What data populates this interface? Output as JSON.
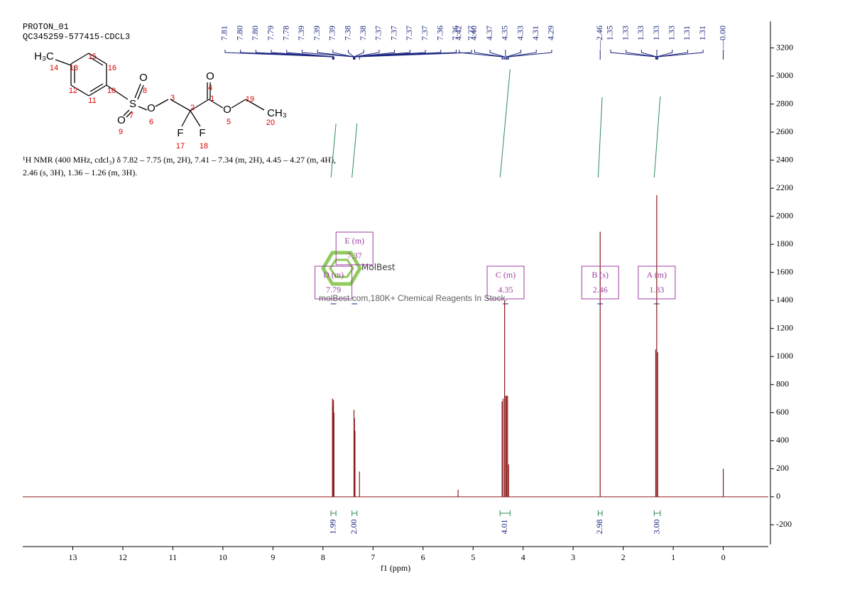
{
  "header": {
    "lines": [
      "PROTON_01",
      "QC345259-577415-CDCL3"
    ]
  },
  "molecule": {
    "labels": [
      "H₃C",
      "14",
      "13",
      "15",
      "16",
      "12",
      "11",
      "10",
      "S",
      "7",
      "O",
      "8",
      "O",
      "9",
      "O",
      "6",
      "3",
      "2",
      "F",
      "17",
      "F",
      "18",
      "O",
      "4",
      "1",
      "O",
      "5",
      "19",
      "CH₃",
      "20"
    ]
  },
  "description": [
    "¹H NMR (400 MHz, cdcl₃) δ 7.82 – 7.75 (m, 2H), 7.41 – 7.34 (m, 2H), 4.45 – 4.27 (m, 4H),",
    "2.46 (s, 3H), 1.36 – 1.26 (m, 3H)."
  ],
  "watermark": {
    "brand": "MolBest",
    "tagline": "molBest.com,180K+ Chemical Reagents In Stock."
  },
  "chart_data": {
    "type": "spectrum",
    "x_label": "f1 (ppm)",
    "xlim": [
      14,
      -0.9
    ],
    "xticks": [
      13,
      12,
      11,
      10,
      9,
      8,
      7,
      6,
      5,
      4,
      3,
      2,
      1,
      0
    ],
    "ylim": [
      -340,
      3390
    ],
    "yticks": [
      -200,
      0,
      200,
      400,
      600,
      800,
      1000,
      1200,
      1400,
      1600,
      1800,
      2000,
      2200,
      2400,
      2600,
      2800,
      3000,
      3200
    ],
    "color": "#8b1a1a",
    "label_color": "#1a237e",
    "integral_color": "#2e8b57",
    "box_color": "#9c3fa0",
    "peaks": {
      "x": [
        7.81,
        7.8,
        7.79,
        7.78,
        7.38,
        7.37,
        7.36,
        7.27,
        5.3,
        4.42,
        4.4,
        4.37,
        4.35,
        4.33,
        4.31,
        4.29,
        2.46,
        1.35,
        1.33,
        1.31,
        0
      ],
      "y": [
        700,
        650,
        690,
        600,
        620,
        560,
        470,
        180,
        50,
        680,
        700,
        1400,
        720,
        720,
        720,
        230,
        1890,
        1050,
        2150,
        1030,
        200
      ]
    },
    "peak_labels": [
      7.81,
      {
        "value": 7.8,
        "label": "7.80"
      },
      {
        "value": 7.8,
        "label": "7.80"
      },
      7.79,
      7.78,
      7.39,
      7.39,
      7.39,
      7.38,
      7.38,
      7.37,
      7.37,
      7.37,
      7.37,
      7.36,
      7.36,
      7.27,
      4.42,
      {
        "value": 4.4,
        "label": "4.40"
      },
      4.37,
      4.35,
      4.33,
      4.31,
      4.29,
      {
        "value": 2.46,
        "label": "—2.46"
      },
      1.35,
      1.33,
      1.33,
      1.33,
      1.33,
      1.31,
      1.31,
      {
        "value": 0,
        "label": "—0.00"
      }
    ],
    "integrals": [
      {
        "from": 7.84,
        "to": 7.74,
        "value": 1.99,
        "label": "1.99"
      },
      {
        "from": 7.42,
        "to": 7.32,
        "value": 2,
        "label": "2.00"
      },
      {
        "from": 4.46,
        "to": 4.26,
        "value": 4.01,
        "label": "4.01"
      },
      {
        "from": 2.5,
        "to": 2.42,
        "value": 2.98,
        "label": "2.98"
      },
      {
        "from": 1.38,
        "to": 1.26,
        "value": 3,
        "label": "3.00"
      }
    ],
    "multiplets": [
      {
        "label": "D (m)",
        "shift": 7.79
      },
      {
        "label": "E (m)",
        "shift": 7.37
      },
      {
        "label": "C (m)",
        "shift": 4.35
      },
      {
        "label": "B (s)",
        "shift": 2.46
      },
      {
        "label": "A (m)",
        "shift": 1.33
      }
    ]
  }
}
